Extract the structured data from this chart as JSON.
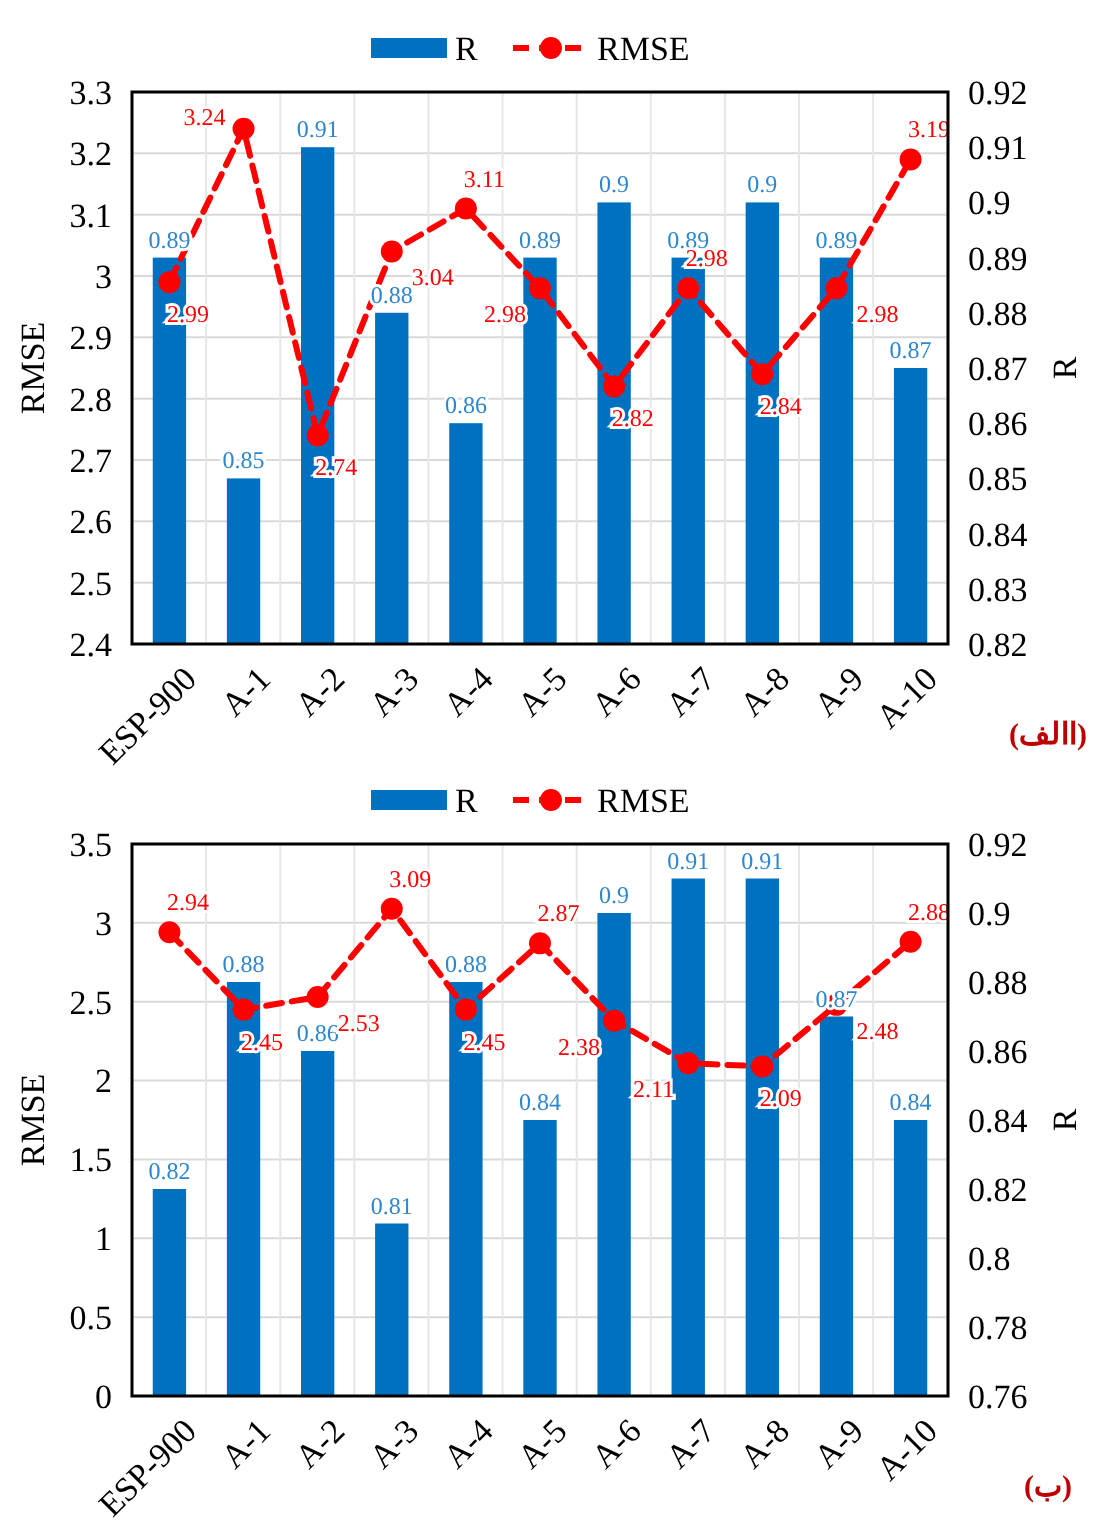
{
  "chart_data": [
    {
      "type": "bar",
      "categories": [
        "ESP-900",
        "A-1",
        "A-2",
        "A-3",
        "A-4",
        "A-5",
        "A-6",
        "A-7",
        "A-8",
        "A-9",
        "A-10"
      ],
      "ylabel": "RMSE",
      "y2label": "R",
      "ylim": [
        2.4,
        3.3
      ],
      "yticks": [
        2.4,
        2.5,
        2.6,
        2.7,
        2.8,
        2.9,
        3,
        3.1,
        3.2,
        3.3
      ],
      "y2lim": [
        0.82,
        0.92
      ],
      "y2ticks": [
        0.82,
        0.83,
        0.84,
        0.85,
        0.86,
        0.87,
        0.88,
        0.89,
        0.9,
        0.91,
        0.92
      ],
      "grid": true,
      "legend": "top",
      "data_labels": true,
      "marker": "circle",
      "line_style": "dashed",
      "annotations": [
        "(االف)"
      ],
      "series": [
        {
          "name": "R",
          "axis": "y2",
          "color": "#0070c0",
          "values": [
            0.89,
            0.85,
            0.91,
            0.88,
            0.86,
            0.89,
            0.9,
            0.89,
            0.9,
            0.89,
            0.87
          ]
        },
        {
          "name": "RMSE",
          "type": "line",
          "color": "#ff0000",
          "values": [
            2.99,
            3.24,
            2.74,
            3.04,
            3.11,
            2.98,
            2.82,
            2.98,
            2.84,
            2.98,
            3.19
          ]
        }
      ]
    },
    {
      "type": "bar",
      "categories": [
        "ESP-900",
        "A-1",
        "A-2",
        "A-3",
        "A-4",
        "A-5",
        "A-6",
        "A-7",
        "A-8",
        "A-9",
        "A-10"
      ],
      "ylabel": "RMSE",
      "y2label": "R",
      "ylim": [
        0,
        3.5
      ],
      "yticks": [
        0,
        0.5,
        1,
        1.5,
        2,
        2.5,
        3,
        3.5
      ],
      "y2lim": [
        0.76,
        0.92
      ],
      "y2ticks": [
        0.76,
        0.78,
        0.8,
        0.82,
        0.84,
        0.86,
        0.88,
        0.9,
        0.92
      ],
      "grid": true,
      "legend": "top",
      "data_labels": true,
      "marker": "circle",
      "line_style": "dashed",
      "annotations": [
        "(ب)"
      ],
      "series": [
        {
          "name": "R",
          "axis": "y2",
          "color": "#0070c0",
          "values": [
            0.82,
            0.88,
            0.86,
            0.81,
            0.88,
            0.84,
            0.9,
            0.91,
            0.91,
            0.87,
            0.84
          ]
        },
        {
          "name": "RMSE",
          "type": "line",
          "color": "#ff0000",
          "values": [
            2.94,
            2.45,
            2.53,
            3.09,
            2.45,
            2.87,
            2.38,
            2.11,
            2.09,
            2.48,
            2.88
          ]
        }
      ]
    }
  ]
}
